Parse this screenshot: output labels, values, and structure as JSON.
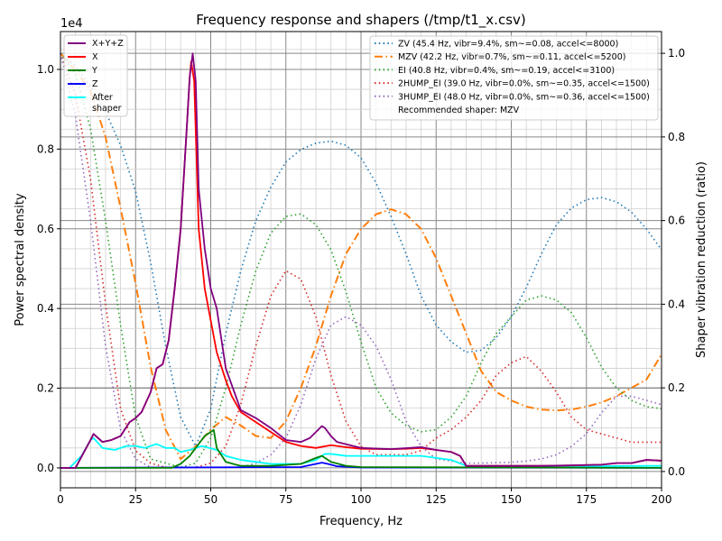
{
  "chart_data": {
    "type": "line",
    "title": "Frequency response and shapers (/tmp/t1_x.csv)",
    "xlabel": "Frequency, Hz",
    "ylabel": "Power spectral density",
    "y2label": "Shaper vibration reduction (ratio)",
    "y_offset_label": "1e4",
    "xlim": [
      0,
      200
    ],
    "ylim": [
      -0.05,
      1.095
    ],
    "y2lim": [
      -0.039,
      1.052
    ],
    "xticks": [
      "0",
      "25",
      "50",
      "75",
      "100",
      "125",
      "150",
      "175",
      "200"
    ],
    "yticks": [
      "0.0",
      "0.2",
      "0.4",
      "0.6",
      "0.8",
      "1.0"
    ],
    "y2ticks": [
      "0.0",
      "0.2",
      "0.4",
      "0.6",
      "0.8",
      "1.0"
    ],
    "grid": true,
    "psd_series": [
      {
        "name": "X+Y+Z",
        "color": "#800080",
        "x": [
          0,
          3,
          5,
          10,
          11,
          14,
          17,
          20,
          23,
          25,
          27,
          30,
          32,
          34,
          36,
          38,
          40,
          42,
          43,
          44,
          45,
          46,
          48,
          50,
          52,
          55,
          60,
          65,
          70,
          75,
          80,
          83,
          87,
          88,
          90,
          92,
          100,
          110,
          120,
          125,
          130,
          133,
          135,
          140,
          160,
          180,
          185,
          190,
          195,
          200
        ],
        "y": [
          0,
          0,
          0,
          0.07,
          0.085,
          0.065,
          0.07,
          0.08,
          0.115,
          0.125,
          0.14,
          0.19,
          0.25,
          0.26,
          0.32,
          0.45,
          0.6,
          0.85,
          0.98,
          1.04,
          0.97,
          0.7,
          0.55,
          0.45,
          0.4,
          0.25,
          0.145,
          0.125,
          0.1,
          0.07,
          0.065,
          0.075,
          0.105,
          0.1,
          0.08,
          0.065,
          0.05,
          0.047,
          0.052,
          0.045,
          0.04,
          0.03,
          0.005,
          0.005,
          0.005,
          0.008,
          0.012,
          0.012,
          0.02,
          0.018
        ]
      },
      {
        "name": "X",
        "color": "#ff0000",
        "x": [
          0,
          3,
          5,
          10,
          11,
          14,
          17,
          20,
          23,
          25,
          27,
          30,
          32,
          34,
          36,
          38,
          40,
          42,
          43,
          43.5,
          44.5,
          46,
          48,
          50,
          52,
          55,
          57,
          60,
          65,
          70,
          75,
          80,
          85,
          90,
          95,
          100,
          110,
          115,
          120,
          125,
          130,
          133,
          135,
          140,
          160,
          170,
          180,
          185,
          190,
          195,
          200
        ],
        "y": [
          0,
          0,
          0,
          0.07,
          0.085,
          0.065,
          0.07,
          0.08,
          0.115,
          0.125,
          0.14,
          0.19,
          0.25,
          0.26,
          0.32,
          0.45,
          0.6,
          0.85,
          0.98,
          1.02,
          0.97,
          0.6,
          0.45,
          0.37,
          0.29,
          0.22,
          0.18,
          0.14,
          0.115,
          0.09,
          0.065,
          0.055,
          0.05,
          0.057,
          0.052,
          0.048,
          0.047,
          0.048,
          0.05,
          0.045,
          0.04,
          0.03,
          0.005,
          0.005,
          0.005,
          0.006,
          0.008,
          0.012,
          0.012,
          0.02,
          0.018
        ]
      },
      {
        "name": "Y",
        "color": "#008000",
        "x": [
          0,
          37,
          40,
          43,
          46,
          48,
          51,
          52,
          55,
          60,
          70,
          80,
          85,
          87,
          90,
          95,
          100,
          200
        ],
        "y": [
          0,
          0,
          0.01,
          0.03,
          0.06,
          0.08,
          0.095,
          0.05,
          0.015,
          0.005,
          0.005,
          0.01,
          0.025,
          0.03,
          0.015,
          0.005,
          0.002,
          0
        ]
      },
      {
        "name": "Z",
        "color": "#0000ff",
        "x": [
          0,
          80,
          85,
          87,
          89,
          92,
          100,
          200
        ],
        "y": [
          0,
          0.002,
          0.01,
          0.013,
          0.01,
          0.004,
          0.001,
          0
        ]
      },
      {
        "name": "After\nshaper",
        "color": "#00ffff",
        "x": [
          0,
          3,
          7,
          10,
          11,
          14,
          18,
          22,
          25,
          28,
          32,
          35,
          38,
          40,
          43,
          47,
          52,
          55,
          60,
          70,
          80,
          85,
          88,
          90,
          95,
          100,
          110,
          120,
          130,
          135,
          140,
          195,
          200
        ],
        "y": [
          0,
          0,
          0.03,
          0.07,
          0.075,
          0.05,
          0.045,
          0.055,
          0.055,
          0.05,
          0.06,
          0.05,
          0.05,
          0.04,
          0.045,
          0.055,
          0.045,
          0.03,
          0.02,
          0.01,
          0.01,
          0.02,
          0.035,
          0.035,
          0.03,
          0.03,
          0.03,
          0.03,
          0.02,
          0.005,
          0.002,
          0.005,
          0.005
        ]
      }
    ],
    "shaper_x": [
      0,
      5,
      10,
      15,
      20,
      25,
      30,
      35,
      40,
      45,
      50,
      55,
      60,
      65,
      70,
      75,
      80,
      85,
      90,
      95,
      100,
      105,
      110,
      115,
      120,
      125,
      130,
      135,
      140,
      145,
      150,
      155,
      160,
      165,
      170,
      175,
      180,
      185,
      190,
      195,
      200
    ],
    "shaper_series": [
      {
        "name": "ZV (45.4 Hz, vibr=9.4%, sm~=0.08, accel<=8000)",
        "color": "#1f77b4",
        "dash": "dot",
        "y": [
          1.0,
          0.97,
          0.92,
          0.86,
          0.78,
          0.67,
          0.5,
          0.3,
          0.13,
          0.06,
          0.15,
          0.33,
          0.48,
          0.6,
          0.68,
          0.74,
          0.77,
          0.785,
          0.79,
          0.78,
          0.75,
          0.69,
          0.61,
          0.52,
          0.42,
          0.35,
          0.31,
          0.285,
          0.29,
          0.32,
          0.37,
          0.44,
          0.52,
          0.59,
          0.63,
          0.65,
          0.655,
          0.645,
          0.62,
          0.58,
          0.53
        ]
      },
      {
        "name": "MZV (42.2 Hz, vibr=0.7%, sm~=0.11, accel<=5200)",
        "color": "#ff7f0e",
        "dash": "dashdot",
        "y": [
          1.0,
          0.96,
          0.91,
          0.8,
          0.63,
          0.45,
          0.25,
          0.1,
          0.03,
          0.06,
          0.1,
          0.13,
          0.11,
          0.085,
          0.08,
          0.12,
          0.2,
          0.3,
          0.42,
          0.52,
          0.58,
          0.615,
          0.627,
          0.615,
          0.58,
          0.51,
          0.42,
          0.33,
          0.24,
          0.19,
          0.17,
          0.155,
          0.148,
          0.146,
          0.148,
          0.155,
          0.165,
          0.18,
          0.2,
          0.22,
          0.28
        ]
      },
      {
        "name": "EI (40.8 Hz, vibr=0.4%, sm~=0.19, accel<=3100)",
        "color": "#2ca02c",
        "dash": "dot",
        "y": [
          1.0,
          0.95,
          0.82,
          0.6,
          0.35,
          0.13,
          0.03,
          0.02,
          0.01,
          0.02,
          0.08,
          0.2,
          0.35,
          0.48,
          0.57,
          0.61,
          0.616,
          0.59,
          0.53,
          0.43,
          0.31,
          0.2,
          0.14,
          0.11,
          0.095,
          0.1,
          0.13,
          0.18,
          0.26,
          0.33,
          0.37,
          0.41,
          0.42,
          0.41,
          0.38,
          0.32,
          0.25,
          0.2,
          0.17,
          0.155,
          0.15
        ]
      },
      {
        "name": "2HUMP_EI (39.0 Hz, vibr=0.0%, sm~=0.35, accel<=1500)",
        "color": "#d62728",
        "dash": "dot",
        "y": [
          1.0,
          0.9,
          0.7,
          0.4,
          0.15,
          0.05,
          0.02,
          0.01,
          0.01,
          0.01,
          0.02,
          0.06,
          0.16,
          0.3,
          0.42,
          0.48,
          0.46,
          0.37,
          0.23,
          0.12,
          0.06,
          0.04,
          0.04,
          0.04,
          0.05,
          0.08,
          0.1,
          0.13,
          0.17,
          0.23,
          0.26,
          0.275,
          0.24,
          0.19,
          0.13,
          0.1,
          0.09,
          0.08,
          0.07,
          0.07,
          0.07
        ]
      },
      {
        "name": "3HUMP_EI (48.0 Hz, vibr=0.0%, sm~=0.36, accel<=1500)",
        "color": "#9467bd",
        "dash": "dot",
        "y": [
          1.0,
          0.85,
          0.6,
          0.3,
          0.1,
          0.03,
          0.01,
          0.01,
          0.01,
          0.01,
          0.01,
          0.01,
          0.01,
          0.02,
          0.04,
          0.08,
          0.16,
          0.27,
          0.35,
          0.37,
          0.35,
          0.3,
          0.22,
          0.12,
          0.06,
          0.03,
          0.025,
          0.02,
          0.02,
          0.021,
          0.022,
          0.025,
          0.03,
          0.04,
          0.06,
          0.09,
          0.14,
          0.18,
          0.18,
          0.17,
          0.16
        ]
      }
    ],
    "legend_left": "top-left",
    "legend_right": "top-right",
    "recommended": "Recommended shaper: MZV"
  }
}
